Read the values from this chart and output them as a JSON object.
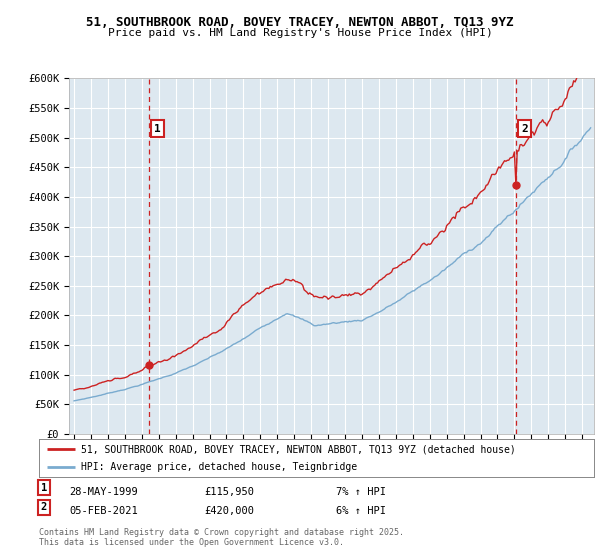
{
  "title_line1": "51, SOUTHBROOK ROAD, BOVEY TRACEY, NEWTON ABBOT, TQ13 9YZ",
  "title_line2": "Price paid vs. HM Land Registry's House Price Index (HPI)",
  "ylim": [
    0,
    600000
  ],
  "yticks": [
    0,
    50000,
    100000,
    150000,
    200000,
    250000,
    300000,
    350000,
    400000,
    450000,
    500000,
    550000,
    600000
  ],
  "ytick_labels": [
    "£0",
    "£50K",
    "£100K",
    "£150K",
    "£200K",
    "£250K",
    "£300K",
    "£350K",
    "£400K",
    "£450K",
    "£500K",
    "£550K",
    "£600K"
  ],
  "legend_line1": "51, SOUTHBROOK ROAD, BOVEY TRACEY, NEWTON ABBOT, TQ13 9YZ (detached house)",
  "legend_line2": "HPI: Average price, detached house, Teignbridge",
  "marker1_label": "1",
  "marker1_date": "28-MAY-1999",
  "marker1_price": "£115,950",
  "marker1_hpi": "7% ↑ HPI",
  "marker1_x": 1999.41,
  "marker1_y": 115950,
  "marker2_label": "2",
  "marker2_date": "05-FEB-2021",
  "marker2_price": "£420,000",
  "marker2_hpi": "6% ↑ HPI",
  "marker2_x": 2021.09,
  "marker2_y": 420000,
  "footer": "Contains HM Land Registry data © Crown copyright and database right 2025.\nThis data is licensed under the Open Government Licence v3.0.",
  "plot_bg_color": "#dde8f0",
  "fig_bg_color": "#ffffff",
  "grid_color": "#ffffff",
  "red_color": "#cc2222",
  "blue_color": "#7aabcf",
  "xlim_left": 1994.7,
  "xlim_right": 2025.7
}
